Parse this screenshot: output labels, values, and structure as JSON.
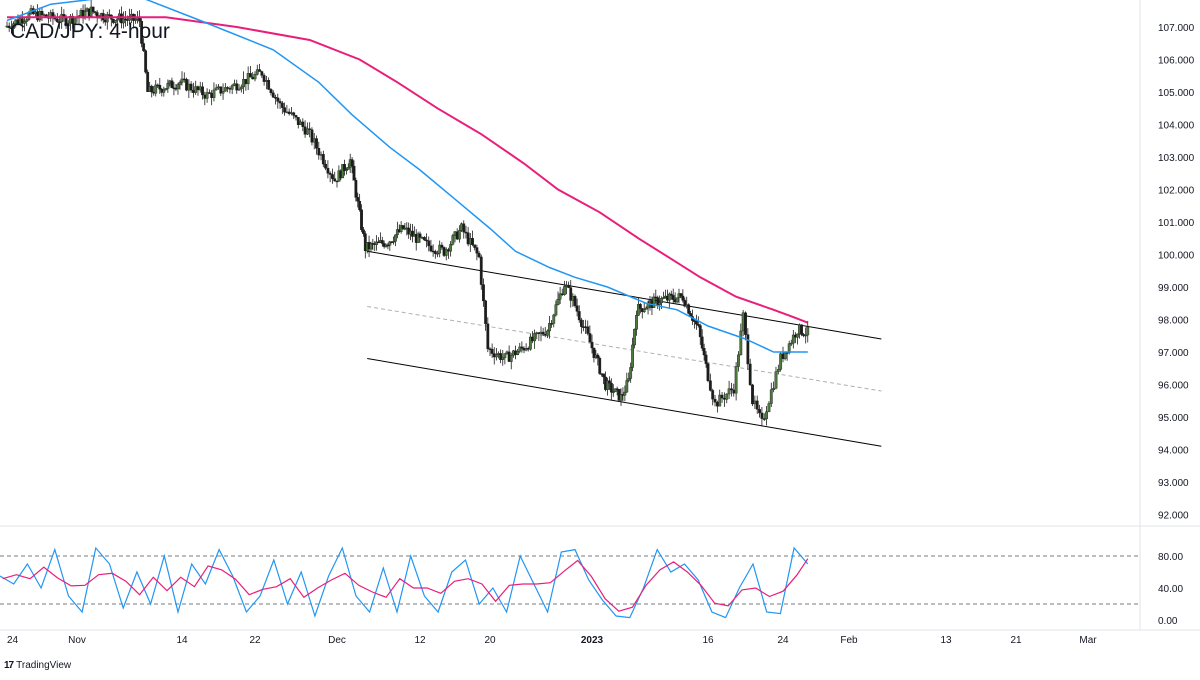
{
  "page": {
    "title": "CAD/JPY: 4-hour"
  },
  "brand": {
    "name": "TradingView",
    "icon": "tradingview-logo-icon"
  },
  "colors": {
    "up_candle": "#4a7a3c",
    "down_candle": "#1c1c1c",
    "ma_fast": "#2196f3",
    "ma_slow": "#e91e7a",
    "stoch_k": "#2196f3",
    "stoch_d": "#e91e7a",
    "channel": "#000000",
    "channel_mid": "#b0b0b0",
    "grid": "#e0e3eb",
    "axis_text": "#131722"
  },
  "chart_data": [
    {
      "type": "candlestick",
      "title": "CAD/JPY: 4-hour",
      "ylim": [
        91.6,
        107.6
      ],
      "y_ticks": [
        "92.000",
        "93.000",
        "94.000",
        "95.000",
        "96.000",
        "97.000",
        "98.000",
        "99.000",
        "100.000",
        "101.000",
        "102.000",
        "103.000",
        "104.000",
        "105.000",
        "106.000",
        "107.000"
      ],
      "x_tick_labels": [
        "24",
        "Nov",
        "14",
        "22",
        "Dec",
        "12",
        "20",
        "2023",
        "16",
        "24",
        "Feb",
        "13",
        "21",
        "Mar"
      ],
      "price_path": [
        [
          "2022-10-24",
          107.0
        ],
        [
          "2022-10-27",
          107.4
        ],
        [
          "2022-10-31",
          107.2
        ],
        [
          "2022-11-03",
          107.5
        ],
        [
          "2022-11-05",
          107.3
        ],
        [
          "2022-11-09",
          107.2
        ],
        [
          "2022-11-10",
          105.0
        ],
        [
          "2022-11-14",
          105.3
        ],
        [
          "2022-11-17",
          104.9
        ],
        [
          "2022-11-20",
          105.2
        ],
        [
          "2022-11-23",
          105.6
        ],
        [
          "2022-11-25",
          104.6
        ],
        [
          "2022-11-28",
          103.8
        ],
        [
          "2022-12-01",
          102.3
        ],
        [
          "2022-12-03",
          102.9
        ],
        [
          "2022-12-05",
          100.2
        ],
        [
          "2022-12-08",
          100.4
        ],
        [
          "2022-12-10",
          100.8
        ],
        [
          "2022-12-13",
          100.3
        ],
        [
          "2022-12-15",
          100.1
        ],
        [
          "2022-12-17",
          100.8
        ],
        [
          "2022-12-19",
          99.9
        ],
        [
          "2022-12-20",
          97.1
        ],
        [
          "2022-12-22",
          96.8
        ],
        [
          "2022-12-24",
          97.1
        ],
        [
          "2022-12-27",
          97.7
        ],
        [
          "2022-12-29",
          99.1
        ],
        [
          "2022-12-30",
          98.6
        ],
        [
          "2023-01-03",
          96.0
        ],
        [
          "2023-01-05",
          95.6
        ],
        [
          "2023-01-06",
          96.1
        ],
        [
          "2023-01-07",
          98.3
        ],
        [
          "2023-01-10",
          98.6
        ],
        [
          "2023-01-13",
          98.7
        ],
        [
          "2023-01-15",
          97.7
        ],
        [
          "2023-01-17",
          95.4
        ],
        [
          "2023-01-19",
          95.9
        ],
        [
          "2023-01-20",
          98.1
        ],
        [
          "2023-01-21",
          95.5
        ],
        [
          "2023-01-22",
          94.8
        ],
        [
          "2023-01-24",
          96.8
        ],
        [
          "2023-01-26",
          97.7
        ],
        [
          "2023-01-27",
          97.6
        ]
      ],
      "channel": {
        "upper": [
          [
            "2022-12-05",
            100.1
          ],
          [
            "2023-02-05",
            97.4
          ]
        ],
        "middle": [
          [
            "2022-12-05",
            98.4
          ],
          [
            "2023-02-05",
            95.8
          ]
        ],
        "lower": [
          [
            "2022-12-05",
            96.8
          ],
          [
            "2023-02-05",
            94.1
          ]
        ]
      },
      "ma_fast_path": [
        [
          "2022-10-24",
          107.2
        ],
        [
          "2022-10-29",
          107.7
        ],
        [
          "2022-11-08",
          108.0
        ],
        [
          "2022-11-16",
          107.2
        ],
        [
          "2022-11-24",
          106.3
        ],
        [
          "2022-11-29",
          105.3
        ],
        [
          "2022-12-03",
          104.3
        ],
        [
          "2022-12-08",
          103.3
        ],
        [
          "2022-12-12",
          102.6
        ],
        [
          "2022-12-16",
          101.7
        ],
        [
          "2022-12-20",
          100.8
        ],
        [
          "2022-12-23",
          100.1
        ],
        [
          "2022-12-27",
          99.6
        ],
        [
          "2022-12-30",
          99.3
        ],
        [
          "2023-01-03",
          99.0
        ],
        [
          "2023-01-08",
          98.5
        ],
        [
          "2023-01-12",
          98.3
        ],
        [
          "2023-01-16",
          97.8
        ],
        [
          "2023-01-20",
          97.4
        ],
        [
          "2023-01-23",
          97.0
        ],
        [
          "2023-01-26",
          97.0
        ],
        [
          "2023-01-27",
          97.0
        ]
      ],
      "ma_slow_path": [
        [
          "2022-10-24",
          107.3
        ],
        [
          "2022-11-04",
          107.3
        ],
        [
          "2022-11-12",
          107.3
        ],
        [
          "2022-11-20",
          107.0
        ],
        [
          "2022-11-28",
          106.6
        ],
        [
          "2022-12-04",
          106.0
        ],
        [
          "2022-12-09",
          105.3
        ],
        [
          "2022-12-14",
          104.5
        ],
        [
          "2022-12-19",
          103.7
        ],
        [
          "2022-12-24",
          102.8
        ],
        [
          "2022-12-28",
          102.0
        ],
        [
          "2023-01-02",
          101.3
        ],
        [
          "2023-01-07",
          100.5
        ],
        [
          "2023-01-11",
          99.9
        ],
        [
          "2023-01-15",
          99.3
        ],
        [
          "2023-01-19",
          98.7
        ],
        [
          "2023-01-23",
          98.3
        ],
        [
          "2023-01-25",
          98.1
        ],
        [
          "2023-01-27",
          97.9
        ]
      ]
    },
    {
      "type": "line",
      "name": "stochastic",
      "ylim": [
        -2,
        105
      ],
      "y_ticks": [
        "0.00",
        "40.00",
        "80.00"
      ],
      "levels": [
        80,
        20
      ],
      "k_path": [
        [
          0,
          55
        ],
        [
          10,
          45
        ],
        [
          20,
          70
        ],
        [
          30,
          40
        ],
        [
          40,
          88
        ],
        [
          50,
          30
        ],
        [
          60,
          10
        ],
        [
          70,
          90
        ],
        [
          80,
          70
        ],
        [
          90,
          15
        ],
        [
          100,
          60
        ],
        [
          110,
          20
        ],
        [
          120,
          80
        ],
        [
          130,
          10
        ],
        [
          140,
          70
        ],
        [
          150,
          45
        ],
        [
          160,
          88
        ],
        [
          170,
          55
        ],
        [
          180,
          10
        ],
        [
          190,
          30
        ],
        [
          200,
          75
        ],
        [
          210,
          20
        ],
        [
          220,
          60
        ],
        [
          230,
          5
        ],
        [
          240,
          55
        ],
        [
          250,
          90
        ],
        [
          260,
          30
        ],
        [
          270,
          10
        ],
        [
          280,
          65
        ],
        [
          290,
          10
        ],
        [
          300,
          80
        ],
        [
          310,
          30
        ],
        [
          320,
          10
        ],
        [
          330,
          60
        ],
        [
          340,
          75
        ],
        [
          350,
          20
        ],
        [
          360,
          40
        ],
        [
          370,
          10
        ],
        [
          380,
          80
        ],
        [
          390,
          45
        ],
        [
          400,
          10
        ],
        [
          410,
          85
        ],
        [
          420,
          88
        ],
        [
          430,
          50
        ],
        [
          440,
          25
        ],
        [
          450,
          5
        ],
        [
          460,
          3
        ],
        [
          470,
          40
        ],
        [
          480,
          88
        ],
        [
          490,
          60
        ],
        [
          500,
          70
        ],
        [
          510,
          50
        ],
        [
          520,
          10
        ],
        [
          530,
          3
        ],
        [
          540,
          40
        ],
        [
          550,
          70
        ],
        [
          560,
          10
        ],
        [
          570,
          8
        ],
        [
          580,
          90
        ],
        [
          590,
          70
        ]
      ]
    }
  ]
}
